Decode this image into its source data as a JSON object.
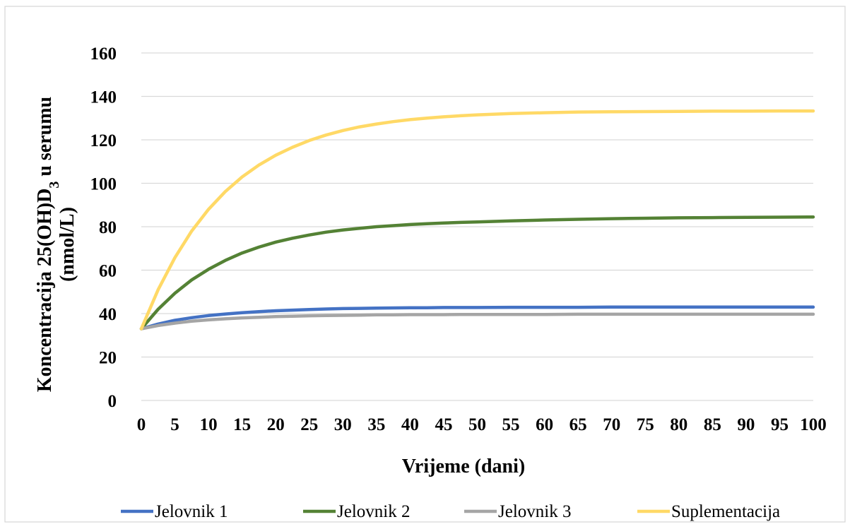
{
  "chart_data": {
    "type": "line",
    "title": "",
    "xlabel": "Vrijeme (dani)",
    "ylabel": {
      "line1_part1": "Koncentracija 25(OH)D",
      "line1_sub": "3",
      "line1_part2": " u serumu",
      "line2": "(nmol/L)"
    },
    "xlim": [
      0,
      100
    ],
    "ylim": [
      0,
      160
    ],
    "xticks": [
      0,
      5,
      10,
      15,
      20,
      25,
      30,
      35,
      40,
      45,
      50,
      55,
      60,
      65,
      70,
      75,
      80,
      85,
      90,
      95,
      100
    ],
    "yticks": [
      0,
      20,
      40,
      60,
      80,
      100,
      120,
      140,
      160
    ],
    "grid": true,
    "legend_position": "bottom",
    "x": [
      0,
      2.5,
      5,
      7.5,
      10,
      12.5,
      15,
      17.5,
      20,
      22.5,
      25,
      27.5,
      30,
      32.5,
      35,
      37.5,
      40,
      42.5,
      45,
      47.5,
      50,
      55,
      60,
      65,
      70,
      75,
      80,
      85,
      90,
      95,
      100
    ],
    "series": [
      {
        "name": "Jelovnik 1",
        "color": "#4472c4",
        "values": [
          33,
          35.2,
          36.9,
          38.1,
          39.1,
          39.8,
          40.4,
          40.9,
          41.3,
          41.6,
          41.9,
          42.1,
          42.3,
          42.4,
          42.5,
          42.6,
          42.7,
          42.7,
          42.8,
          42.8,
          42.8,
          42.9,
          42.9,
          42.9,
          43,
          43,
          43,
          43,
          43,
          43,
          43
        ]
      },
      {
        "name": "Jelovnik 2",
        "color": "#548235",
        "values": [
          33,
          42,
          49.4,
          55.5,
          60.4,
          64.5,
          67.9,
          70.6,
          72.9,
          74.7,
          76.2,
          77.5,
          78.5,
          79.3,
          80,
          80.5,
          81,
          81.4,
          81.7,
          82,
          82.2,
          82.7,
          83.1,
          83.4,
          83.7,
          83.9,
          84.1,
          84.2,
          84.3,
          84.4,
          84.5
        ]
      },
      {
        "name": "Jelovnik 3",
        "color": "#a5a5a5",
        "values": [
          33,
          34.5,
          35.6,
          36.5,
          37.1,
          37.6,
          38,
          38.3,
          38.6,
          38.8,
          39,
          39.1,
          39.2,
          39.3,
          39.4,
          39.4,
          39.5,
          39.5,
          39.5,
          39.6,
          39.6,
          39.6,
          39.6,
          39.7,
          39.7,
          39.7,
          39.7,
          39.7,
          39.7,
          39.7,
          39.7
        ]
      },
      {
        "name": "Suplementacija",
        "color": "#ffd966",
        "values": [
          33,
          51,
          65.8,
          78,
          88,
          96.2,
          102.9,
          108.4,
          112.9,
          116.6,
          119.7,
          122.2,
          124.3,
          126,
          127.3,
          128.4,
          129.3,
          130,
          130.6,
          131.1,
          131.5,
          132.1,
          132.5,
          132.8,
          132.9,
          133,
          133.1,
          133.2,
          133.2,
          133.3,
          133.3
        ]
      }
    ]
  }
}
